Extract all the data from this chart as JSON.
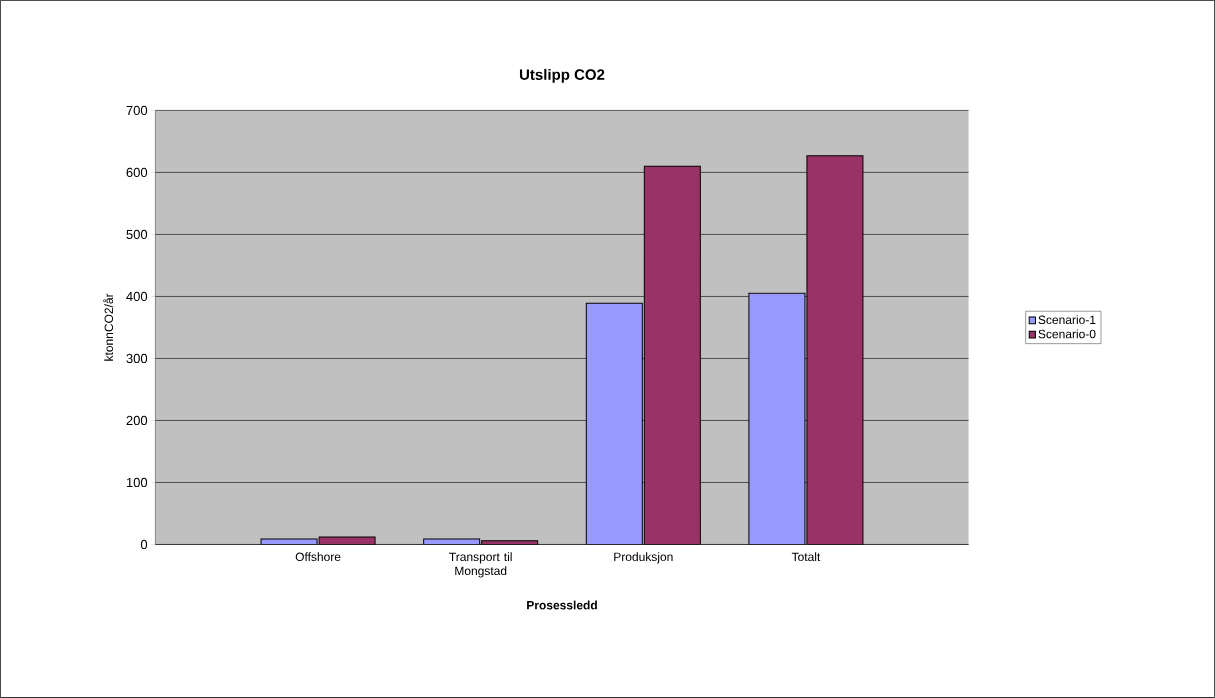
{
  "chart_data": {
    "type": "bar",
    "title": "Utslipp CO2",
    "xlabel": "Prosessledd",
    "ylabel": "ktonnCO2/år",
    "categories": [
      "Offshore",
      "Transport til Mongstad",
      "Produksjon",
      "Totalt"
    ],
    "series": [
      {
        "name": "Scenario-1",
        "color": "#9999ff",
        "values": [
          9,
          9,
          389,
          405
        ]
      },
      {
        "name": "Scenario-0",
        "color": "#993366",
        "values": [
          12,
          6,
          610,
          627
        ]
      }
    ],
    "ylim": [
      0,
      700
    ],
    "yticks": [
      0,
      100,
      200,
      300,
      400,
      500,
      600,
      700
    ],
    "grid": "y",
    "legend": "right"
  }
}
